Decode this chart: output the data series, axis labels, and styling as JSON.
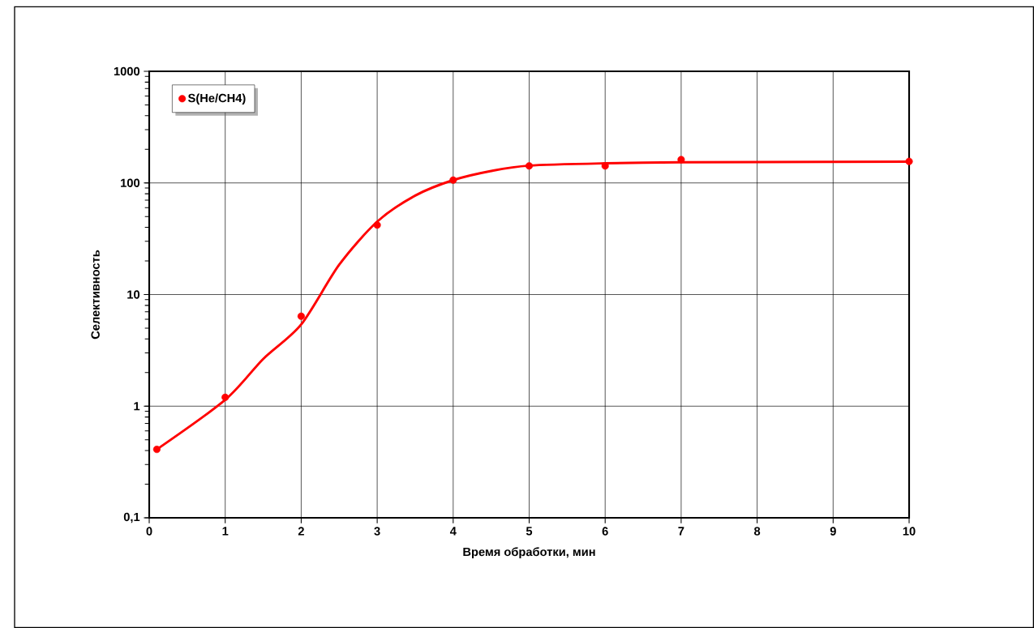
{
  "chart_data": {
    "type": "scatter",
    "xlabel": "Время обработки, мин",
    "ylabel": "Селективность",
    "log": "y",
    "xlim": [
      0,
      10
    ],
    "xticks": [
      0,
      1,
      2,
      3,
      4,
      5,
      6,
      7,
      8,
      9,
      10
    ],
    "ylim": [
      0.1,
      1000
    ],
    "yticks": [
      {
        "value": 0.1,
        "label": "0,1"
      },
      1,
      10,
      100,
      1000
    ],
    "grid": true,
    "legend": "top left",
    "series": [
      {
        "name": "S(He/CH4)",
        "color": "#ff0000",
        "marker": "circle",
        "x": [
          0.1,
          1,
          2,
          3,
          4,
          5,
          6,
          7,
          10
        ],
        "values": [
          0.41,
          1.2,
          6.4,
          42,
          106,
          142,
          142,
          162,
          156
        ]
      },
      {
        "type": "line",
        "color": "#ff0000",
        "marker": "none",
        "line_style": "solid",
        "x": [
          0.1,
          1,
          1.5,
          2,
          2.5,
          3,
          3.5,
          4,
          4.5,
          5,
          6,
          7,
          8,
          10
        ],
        "values": [
          0.41,
          1.14,
          2.65,
          5.4,
          18.5,
          45,
          77,
          106,
          128,
          143,
          150,
          153,
          154,
          155
        ]
      }
    ]
  }
}
